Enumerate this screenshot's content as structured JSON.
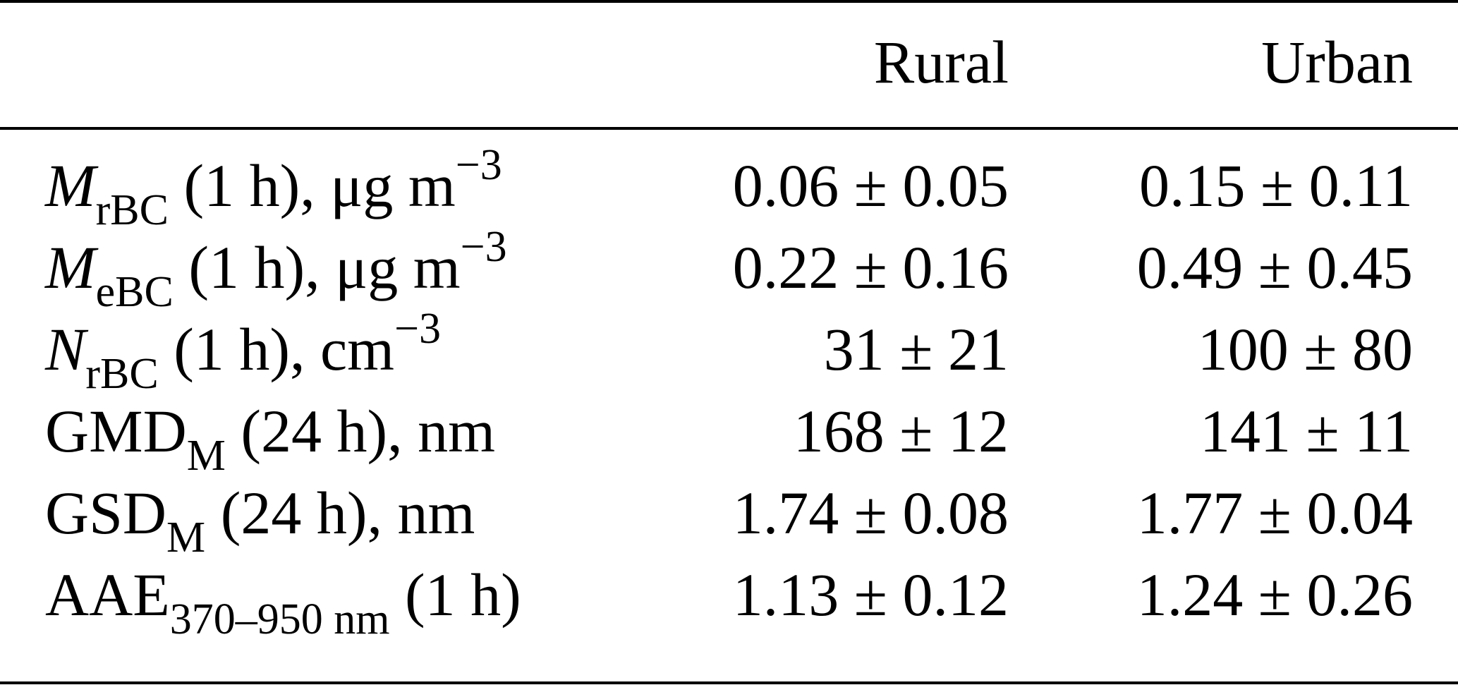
{
  "table": {
    "columns": [
      "Rural",
      "Urban"
    ],
    "rows": [
      {
        "symbol": "M",
        "symbol_italic": true,
        "subscript": "rBC",
        "suffix": " (1 h), μg m",
        "superscript": "−3",
        "rural": "0.06 ± 0.05",
        "urban": "0.15 ± 0.11"
      },
      {
        "symbol": "M",
        "symbol_italic": true,
        "subscript": "eBC",
        "suffix": " (1 h), μg m",
        "superscript": "−3",
        "rural": "0.22 ± 0.16",
        "urban": "0.49 ± 0.45"
      },
      {
        "symbol": "N",
        "symbol_italic": true,
        "subscript": "rBC",
        "suffix": " (1 h), cm",
        "superscript": "−3",
        "rural": "31 ± 21",
        "urban": "100 ± 80"
      },
      {
        "symbol": "GMD",
        "symbol_italic": false,
        "subscript": "M",
        "suffix": " (24 h), nm",
        "superscript": "",
        "rural": "168 ± 12",
        "urban": "141 ± 11"
      },
      {
        "symbol": "GSD",
        "symbol_italic": false,
        "subscript": "M",
        "suffix": " (24 h), nm",
        "superscript": "",
        "rural": "1.74 ± 0.08",
        "urban": "1.77 ± 0.04"
      },
      {
        "symbol": "AAE",
        "symbol_italic": false,
        "subscript": "370–950 nm",
        "suffix": " (1 h)",
        "superscript": "",
        "rural": "1.13 ± 0.12",
        "urban": "1.24 ± 0.26"
      }
    ]
  }
}
